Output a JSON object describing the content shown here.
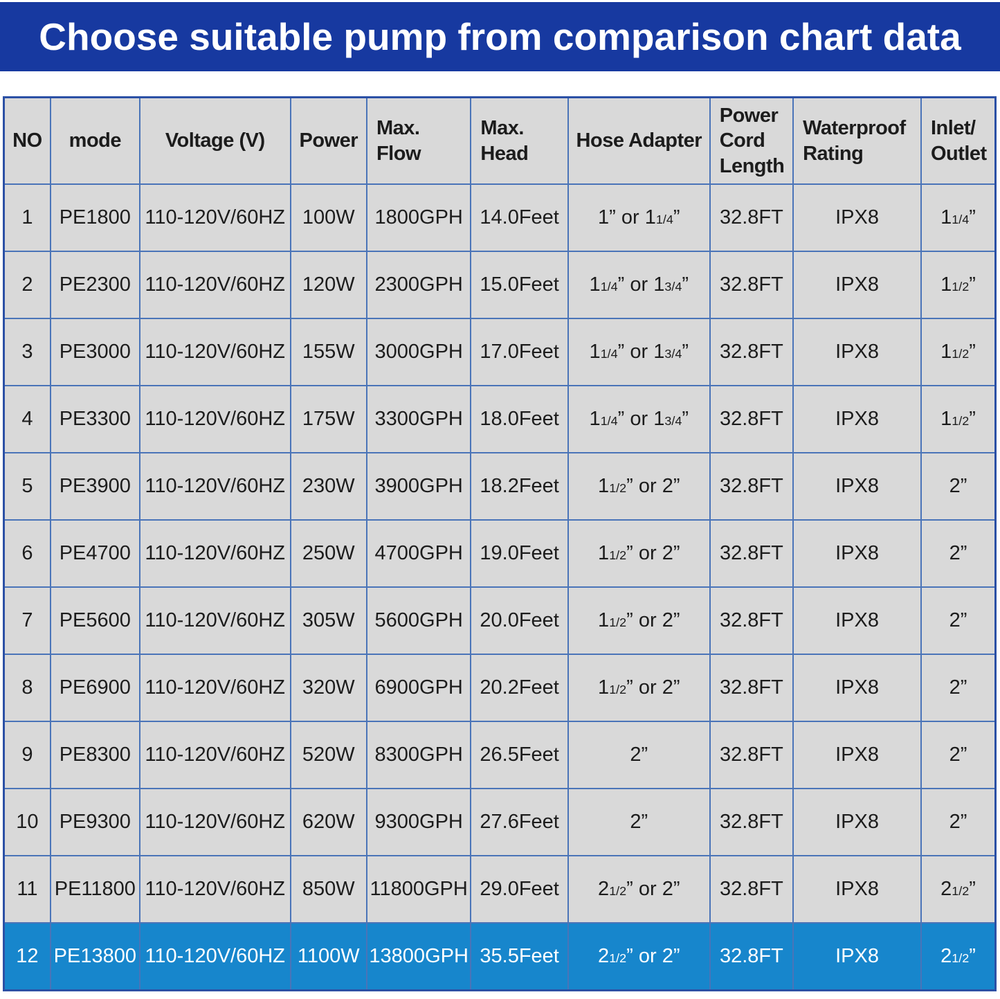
{
  "banner": {
    "title": "Choose suitable pump from comparison chart data",
    "bg_color": "#1739a0",
    "text_color": "#ffffff"
  },
  "colors": {
    "cell_bg": "#d9d9d9",
    "highlight_bg": "#1786cc",
    "highlight_text": "#ffffff",
    "inner_border": "#4a74b8",
    "outer_border": "#2b50a5",
    "cell_text": "#1c1c1c"
  },
  "chart_data": {
    "type": "table",
    "title": "Choose suitable pump from comparison chart data",
    "columns": [
      "NO",
      "mode",
      "Voltage (V)",
      "Power",
      "Max.\nFlow",
      "Max.\nHead",
      "Hose Adapter",
      "Power\nCord\nLength",
      "Waterproof\nRating",
      "Inlet/\nOutlet"
    ],
    "column_widths_pct": [
      4.7,
      9.0,
      15.2,
      7.7,
      10.5,
      9.8,
      14.3,
      8.4,
      12.9,
      7.5
    ],
    "rows": [
      [
        "1",
        "PE1800",
        "110-120V/60HZ",
        "100W",
        "1800GPH",
        "14.0Feet",
        "1” or 1{1/4}”",
        "32.8FT",
        "IPX8",
        "1{1/4}”"
      ],
      [
        "2",
        "PE2300",
        "110-120V/60HZ",
        "120W",
        "2300GPH",
        "15.0Feet",
        "1{1/4}” or 1{3/4}”",
        "32.8FT",
        "IPX8",
        "1{1/2}”"
      ],
      [
        "3",
        "PE3000",
        "110-120V/60HZ",
        "155W",
        "3000GPH",
        "17.0Feet",
        "1{1/4}” or 1{3/4}”",
        "32.8FT",
        "IPX8",
        "1{1/2}”"
      ],
      [
        "4",
        "PE3300",
        "110-120V/60HZ",
        "175W",
        "3300GPH",
        "18.0Feet",
        "1{1/4}” or 1{3/4}”",
        "32.8FT",
        "IPX8",
        "1{1/2}”"
      ],
      [
        "5",
        "PE3900",
        "110-120V/60HZ",
        "230W",
        "3900GPH",
        "18.2Feet",
        "1{1/2}” or 2”",
        "32.8FT",
        "IPX8",
        "2”"
      ],
      [
        "6",
        "PE4700",
        "110-120V/60HZ",
        "250W",
        "4700GPH",
        "19.0Feet",
        "1{1/2}” or 2”",
        "32.8FT",
        "IPX8",
        "2”"
      ],
      [
        "7",
        "PE5600",
        "110-120V/60HZ",
        "305W",
        "5600GPH",
        "20.0Feet",
        "1{1/2}” or 2”",
        "32.8FT",
        "IPX8",
        "2”"
      ],
      [
        "8",
        "PE6900",
        "110-120V/60HZ",
        "320W",
        "6900GPH",
        "20.2Feet",
        "1{1/2}” or 2”",
        "32.8FT",
        "IPX8",
        "2”"
      ],
      [
        "9",
        "PE8300",
        "110-120V/60HZ",
        "520W",
        "8300GPH",
        "26.5Feet",
        "2”",
        "32.8FT",
        "IPX8",
        "2”"
      ],
      [
        "10",
        "PE9300",
        "110-120V/60HZ",
        "620W",
        "9300GPH",
        "27.6Feet",
        "2”",
        "32.8FT",
        "IPX8",
        "2”"
      ],
      [
        "11",
        "PE11800",
        "110-120V/60HZ",
        "850W",
        "11800GPH",
        "29.0Feet",
        "2{1/2}” or 2”",
        "32.8FT",
        "IPX8",
        "2{1/2}”"
      ],
      [
        "12",
        "PE13800",
        "110-120V/60HZ",
        "1100W",
        "13800GPH",
        "35.5Feet",
        "2{1/2}” or 2”",
        "32.8FT",
        "IPX8",
        "2{1/2}”"
      ]
    ],
    "highlighted_row_index": 11,
    "column_keys": [
      "no",
      "mode",
      "voltage",
      "power",
      "max_flow",
      "max_head",
      "hose_adapter",
      "power_cord_length",
      "waterproof_rating",
      "inlet_outlet"
    ]
  }
}
